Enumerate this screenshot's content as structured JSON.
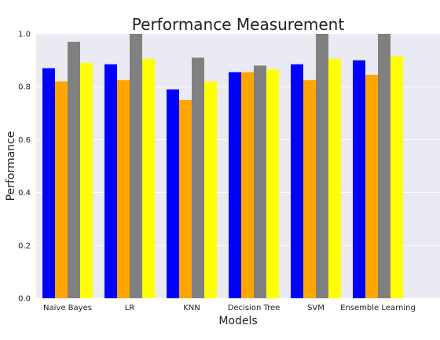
{
  "chart_data": {
    "type": "bar",
    "title": "Performance Measurement",
    "xlabel": "Models",
    "ylabel": "Performance",
    "categories": [
      "Naive Bayes",
      "LR",
      "KNN",
      "Decision Tree",
      "SVM",
      "Ensemble Learning"
    ],
    "ylim": [
      0,
      1.0
    ],
    "yticks": [
      "0.0",
      "0.2",
      "0.4",
      "0.6",
      "0.8",
      "1.0"
    ],
    "grid": true,
    "series": [
      {
        "color": "#0000ff",
        "values": [
          0.87,
          0.885,
          0.79,
          0.855,
          0.885,
          0.9
        ]
      },
      {
        "color": "#ffa500",
        "values": [
          0.82,
          0.825,
          0.75,
          0.855,
          0.825,
          0.845
        ]
      },
      {
        "color": "#808080",
        "values": [
          0.97,
          1.0,
          0.91,
          0.88,
          1.0,
          1.0
        ]
      },
      {
        "color": "#ffff00",
        "values": [
          0.89,
          0.905,
          0.82,
          0.865,
          0.905,
          0.915
        ]
      }
    ],
    "plot_background": "#eaeaf2",
    "grid_color": "#ffffff"
  }
}
